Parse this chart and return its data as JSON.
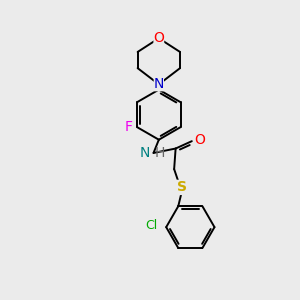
{
  "background_color": "#ebebeb",
  "atom_colors": {
    "C": "#000000",
    "N": "#0000cc",
    "N_amide": "#008080",
    "O": "#ff0000",
    "F": "#ee00ee",
    "S": "#ccaa00",
    "Cl": "#00aa00",
    "H": "#666666"
  },
  "figsize": [
    3.0,
    3.0
  ],
  "dpi": 100
}
